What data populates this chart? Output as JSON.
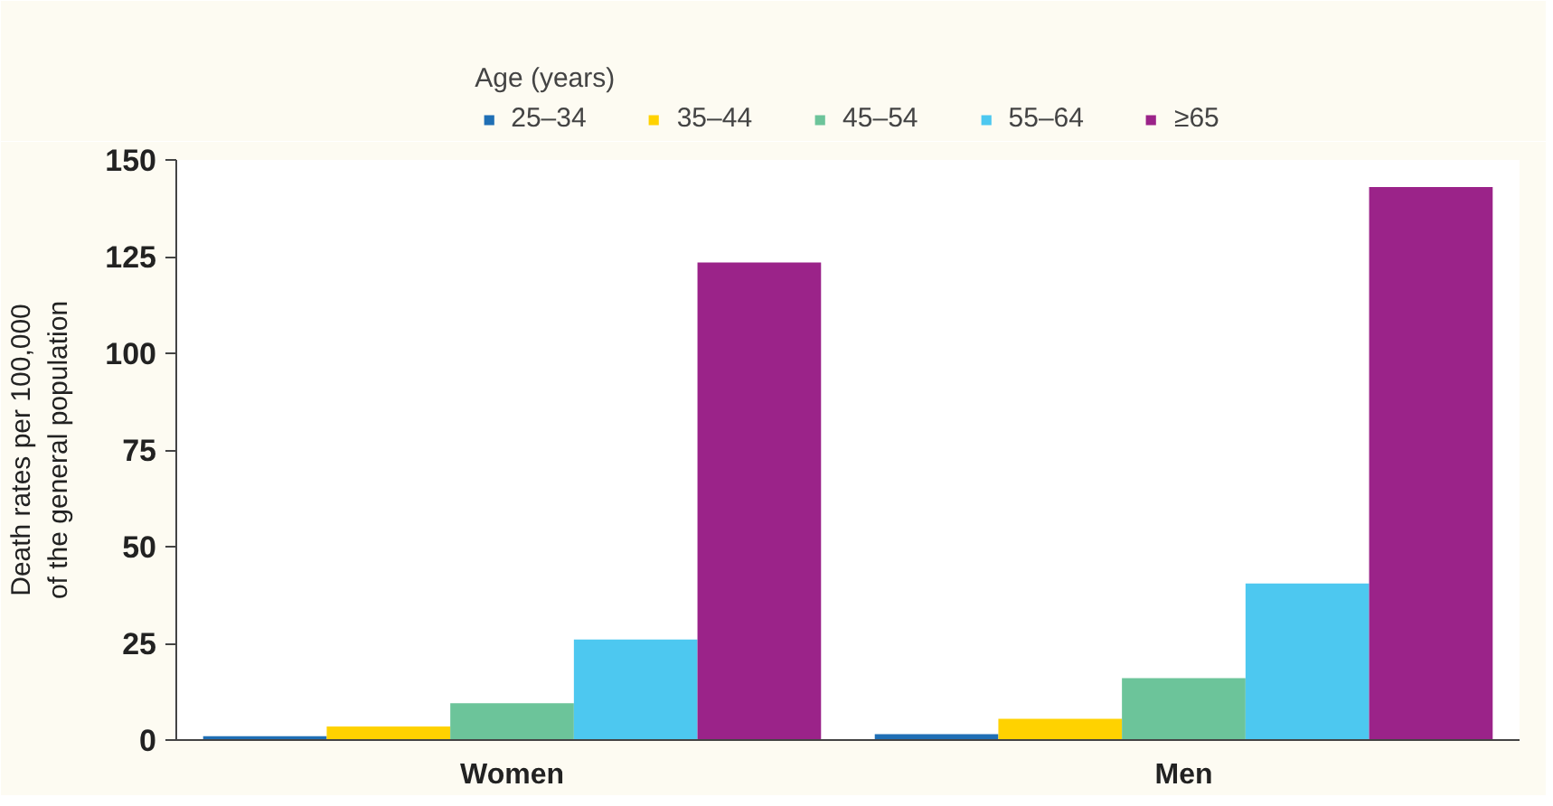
{
  "chart_data": {
    "type": "bar",
    "categories": [
      "Women",
      "Men"
    ],
    "ylabel": "Death rates per 100,000\nof the general population",
    "legend_title": "Age (years)",
    "legend": "top",
    "ylim": [
      0,
      150
    ],
    "yticks": [
      0,
      25,
      50,
      75,
      100,
      125,
      150
    ],
    "grid": false,
    "series": [
      {
        "name": "25–34",
        "color": "#1f6fb5",
        "values": [
          1,
          1.5
        ]
      },
      {
        "name": "35–44",
        "color": "#ffd200",
        "values": [
          3.5,
          5.5
        ]
      },
      {
        "name": "45–54",
        "color": "#6cc49a",
        "values": [
          9.5,
          16
        ]
      },
      {
        "name": "55–64",
        "color": "#4dc8f0",
        "values": [
          26,
          40.5
        ]
      },
      {
        "name": "≥65",
        "color": "#9b2389",
        "values": [
          123.5,
          143
        ]
      }
    ]
  }
}
